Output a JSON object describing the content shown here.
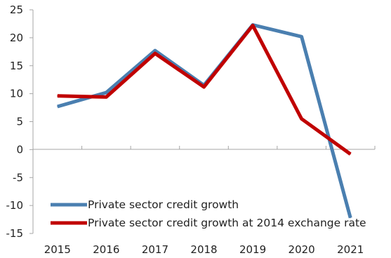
{
  "chart_data": {
    "type": "line",
    "title": "",
    "xlabel": "",
    "ylabel": "",
    "x": [
      "2015",
      "2016",
      "2017",
      "2018",
      "2019",
      "2020",
      "2021"
    ],
    "ylim": [
      -15,
      25
    ],
    "yticks": [
      25,
      20,
      15,
      10,
      5,
      0,
      -5,
      -10,
      -15
    ],
    "grid": false,
    "legend_position": "bottom-left",
    "series": [
      {
        "name": "Private sector credit growth",
        "color": "#4a7fb0",
        "values": [
          7.7,
          10.2,
          17.7,
          11.5,
          22.3,
          20.2,
          -12.2
        ]
      },
      {
        "name": "Private sector credit growth at 2014 exchange rate",
        "color": "#c00000",
        "values": [
          9.6,
          9.4,
          17.2,
          11.2,
          22.2,
          5.5,
          -0.8
        ]
      }
    ]
  }
}
